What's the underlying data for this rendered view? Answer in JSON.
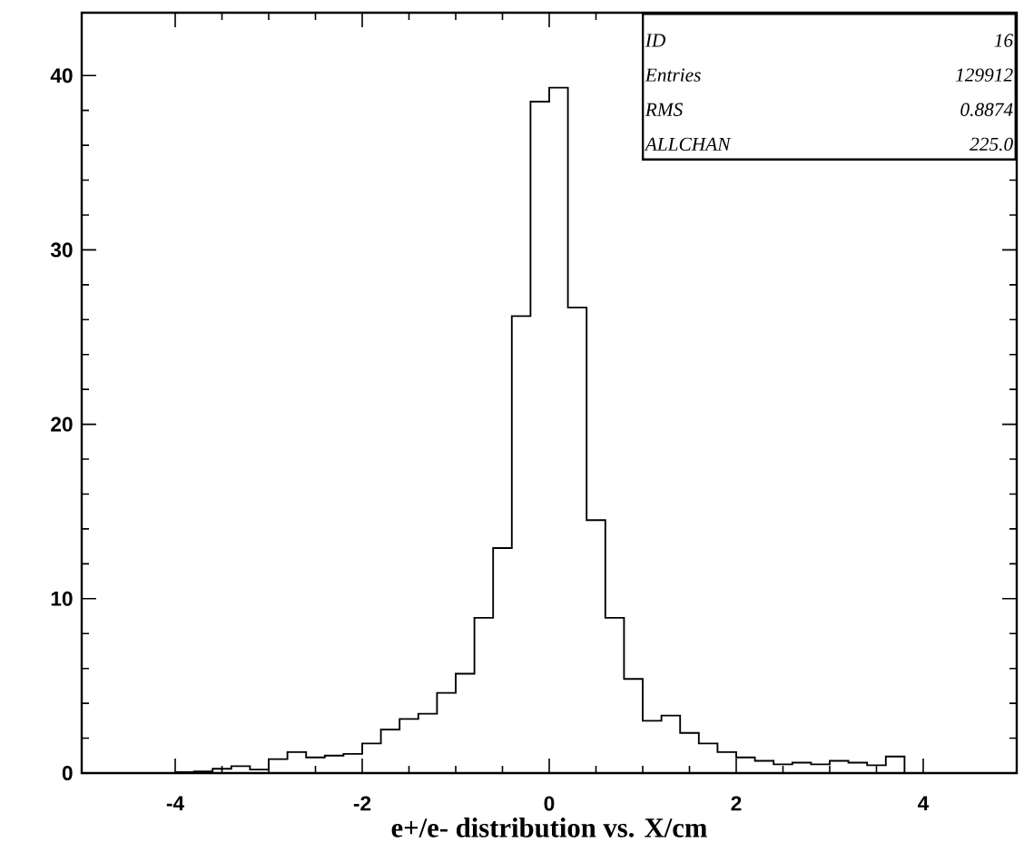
{
  "chart_data": {
    "type": "histogram",
    "xlabel": "e+/e- distribution vs. X/cm",
    "bins": [
      -5,
      -4.8,
      -4.6,
      -4.4,
      -4.2,
      -4,
      -3.8,
      -3.6,
      -3.4,
      -3.2,
      -3,
      -2.8,
      -2.6,
      -2.4,
      -2.2,
      -2,
      -1.8,
      -1.6,
      -1.4,
      -1.2,
      -1,
      -0.8,
      -0.6,
      -0.4,
      -0.2,
      0,
      0.2,
      0.4,
      0.6,
      0.8,
      1,
      1.2,
      1.4,
      1.6,
      1.8,
      2,
      2.2,
      2.4,
      2.6,
      2.8,
      3,
      3.2,
      3.4,
      3.6,
      3.8,
      4,
      4.2,
      4.4,
      4.6,
      4.8,
      5
    ],
    "values": [
      0,
      0,
      0,
      0,
      0,
      0.05,
      0.1,
      0.25,
      0.4,
      0.2,
      0.8,
      1.2,
      0.9,
      1.0,
      1.1,
      1.7,
      2.5,
      3.1,
      3.4,
      4.6,
      5.7,
      8.9,
      12.9,
      26.2,
      38.5,
      39.3,
      26.7,
      14.5,
      8.9,
      5.4,
      3.0,
      3.3,
      2.3,
      1.7,
      1.2,
      0.9,
      0.7,
      0.5,
      0.6,
      0.5,
      0.7,
      0.6,
      0.45,
      0.95,
      0,
      0,
      0,
      0,
      0,
      0
    ],
    "color": "#000000",
    "xlim": [
      -5,
      5
    ],
    "ylim": [
      0,
      43.6
    ],
    "xticks": [
      -4,
      -2,
      0,
      2,
      4
    ],
    "yticks": [
      0,
      10,
      20,
      30,
      40
    ],
    "grid": false,
    "annotations": [
      "ID",
      "16",
      "Entries",
      "129912",
      "RMS",
      "0.8874",
      "ALLCHAN",
      "225.0"
    ]
  }
}
